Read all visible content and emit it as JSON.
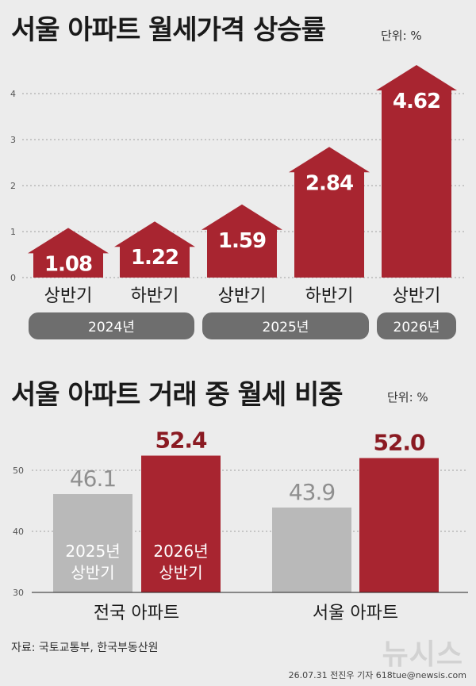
{
  "chart_data": [
    {
      "type": "bar",
      "title": "서울 아파트 월세가격 상승률",
      "unit": "단위: %",
      "categories": [
        "상반기",
        "하반기",
        "상반기",
        "하반기",
        "상반기"
      ],
      "groups": [
        {
          "label": "2024년",
          "span": 2
        },
        {
          "label": "2025년",
          "span": 2
        },
        {
          "label": "2026년",
          "span": 1
        }
      ],
      "values": [
        1.08,
        1.22,
        1.59,
        2.84,
        4.62
      ],
      "value_labels": [
        "1.08",
        "1.22",
        "1.59",
        "2.84",
        "4.62"
      ],
      "yticks": [
        0,
        1,
        2,
        3,
        4
      ],
      "ylim": [
        0,
        4.62
      ],
      "grid": true,
      "colors": {
        "bar": "#a82530",
        "label": "#ffffff",
        "group_pill": "#6e6e6e"
      }
    },
    {
      "type": "bar",
      "title": "서울 아파트 거래 중 월세 비중",
      "unit": "단위: %",
      "categories": [
        "전국 아파트",
        "서울 아파트"
      ],
      "series": [
        {
          "name": "2025년 상반기",
          "values": [
            46.1,
            43.9
          ],
          "value_labels": [
            "46.1",
            "43.9"
          ],
          "color": "#b9b9b9"
        },
        {
          "name": "2026년 상반기",
          "values": [
            52.4,
            52.0
          ],
          "value_labels": [
            "52.4",
            "52.0"
          ],
          "color": "#a82530"
        }
      ],
      "inbar_labels": [
        [
          "2025년",
          "상반기"
        ],
        [
          "2026년",
          "상반기"
        ]
      ],
      "yticks": [
        30,
        40,
        50
      ],
      "ylim": [
        30,
        52.4
      ],
      "grid": true,
      "label_colors": {
        "old": "#8f8f8f",
        "new": "#8a1a22",
        "inbar": "#ffffff"
      }
    }
  ],
  "footer": {
    "source": "자료: 국토교통부, 한국부동산원",
    "credit": "26.07.31 전진우 기자 618tue@newsis.com",
    "logo": "뉴시스"
  }
}
